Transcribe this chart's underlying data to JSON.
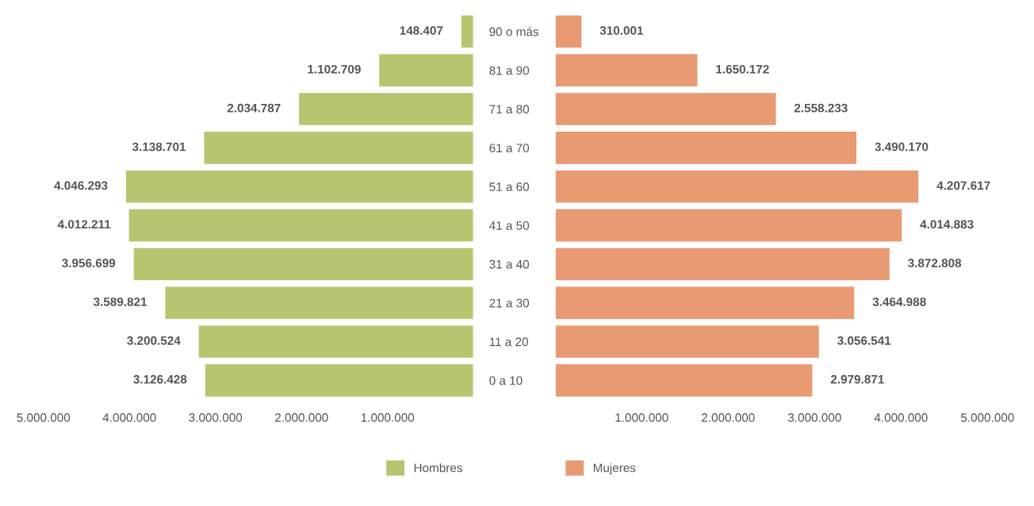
{
  "chart_data": [
    {
      "type": "bar",
      "orientation": "horizontal",
      "categories": [
        "90 o más",
        "81 a 90",
        "71 a 80",
        "61 a 70",
        "51 a 60",
        "41 a 50",
        "31 a 40",
        "21 a 30",
        "11 a 20",
        "0 a 10"
      ],
      "series": [
        {
          "name": "Hombres",
          "color": "#b8c570",
          "values": [
            148407,
            1102709,
            2034787,
            3138701,
            4046293,
            4012211,
            3956699,
            3589821,
            3200524,
            3126428
          ],
          "value_labels": [
            "148.407",
            "1.102.709",
            "2.034.787",
            "3.138.701",
            "4.046.293",
            "4.012.211",
            "3.956.699",
            "3.589.821",
            "3.200.524",
            "3.126.428"
          ]
        }
      ],
      "xlim": [
        5000000,
        0
      ],
      "xticks": [
        {
          "value": 5000000,
          "label": "5.000.000"
        },
        {
          "value": 4000000,
          "label": "4.000.000"
        },
        {
          "value": 3000000,
          "label": "3.000.000"
        },
        {
          "value": 2000000,
          "label": "2.000.000"
        },
        {
          "value": 1000000,
          "label": "1.000.000"
        }
      ],
      "grid": false,
      "legend": "bottom right"
    },
    {
      "type": "bar",
      "orientation": "horizontal",
      "series": [
        {
          "name": "Mujeres",
          "color": "#e89a73",
          "values": [
            310001,
            1650172,
            2558233,
            3490170,
            4207617,
            4014883,
            3872808,
            3464988,
            3056541,
            2979871
          ],
          "value_labels": [
            "310.001",
            "1.650.172",
            "2.558.233",
            "3.490.170",
            "4.207.617",
            "4.014.883",
            "3.872.808",
            "3.464.988",
            "3.056.541",
            "2.979.871"
          ]
        }
      ],
      "xlim": [
        0,
        5000000
      ],
      "xticks": [
        {
          "value": 1000000,
          "label": "1.000.000"
        },
        {
          "value": 2000000,
          "label": "2.000.000"
        },
        {
          "value": 3000000,
          "label": "3.000.000"
        },
        {
          "value": 4000000,
          "label": "4.000.000"
        },
        {
          "value": 5000000,
          "label": "5.000.000"
        }
      ],
      "grid": false,
      "legend": "bottom left",
      "tick_labels": "x"
    }
  ]
}
